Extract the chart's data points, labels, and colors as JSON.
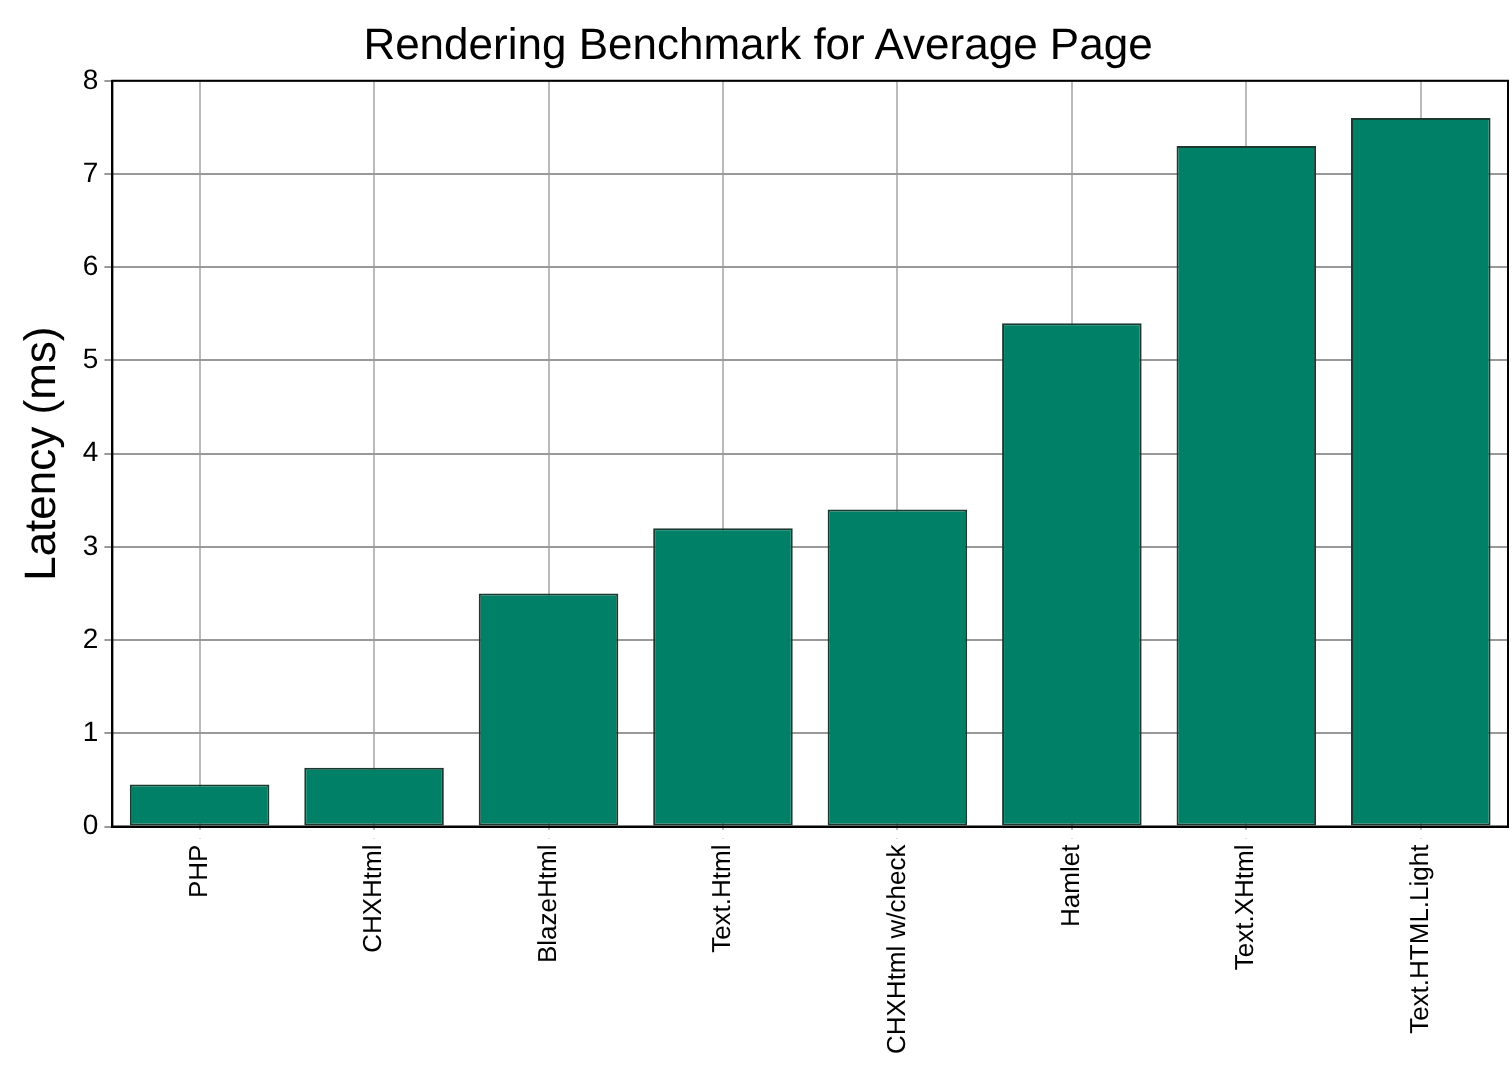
{
  "chart_data": {
    "type": "bar",
    "title": "Rendering Benchmark for Average Page",
    "ylabel": "Latency (ms)",
    "categories": [
      "PHP",
      "CHXHtml",
      "BlazeHtml",
      "Text.Html",
      "CHXHtml w/check",
      "Hamlet",
      "Text.XHtml",
      "Text.HTML.Light"
    ],
    "values": [
      0.45,
      0.63,
      2.5,
      3.2,
      3.4,
      5.4,
      7.3,
      7.6
    ],
    "color": "#008066",
    "ylim": [
      0,
      8
    ],
    "yticks": [
      0,
      1,
      2,
      3,
      4,
      5,
      6,
      7,
      8
    ],
    "grid": true,
    "legend": false
  }
}
